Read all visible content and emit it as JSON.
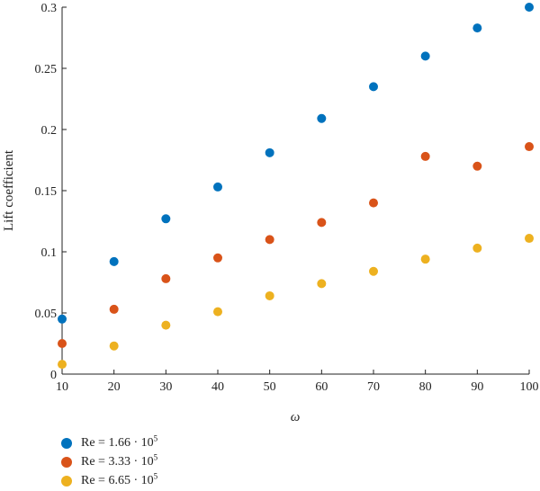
{
  "chart_data": {
    "type": "scatter",
    "xlabel": "ω",
    "ylabel": "Lift coefficient",
    "xlim": [
      10,
      100
    ],
    "ylim": [
      0,
      0.3
    ],
    "xticks": [
      10,
      20,
      30,
      40,
      50,
      60,
      70,
      80,
      90,
      100
    ],
    "yticks": [
      0,
      0.05,
      0.1,
      0.15,
      0.2,
      0.25,
      0.3
    ],
    "x": [
      10,
      20,
      30,
      40,
      50,
      60,
      70,
      80,
      90,
      100
    ],
    "grid": false,
    "legend_position": "bottom-left",
    "series": [
      {
        "name": "Re = 1.66 · 10",
        "exponent": "5",
        "color": "#0072BD",
        "values": [
          0.045,
          0.092,
          0.127,
          0.153,
          0.181,
          0.209,
          0.235,
          0.26,
          0.283,
          0.3
        ]
      },
      {
        "name": "Re = 3.33 · 10",
        "exponent": "5",
        "color": "#D95319",
        "values": [
          0.025,
          0.053,
          0.078,
          0.095,
          0.11,
          0.124,
          0.14,
          0.178,
          0.17,
          0.186
        ]
      },
      {
        "name": "Re = 6.65 · 10",
        "exponent": "5",
        "color": "#EDB120",
        "values": [
          0.008,
          0.023,
          0.04,
          0.051,
          0.064,
          0.074,
          0.084,
          0.094,
          0.103,
          0.111
        ]
      }
    ]
  }
}
